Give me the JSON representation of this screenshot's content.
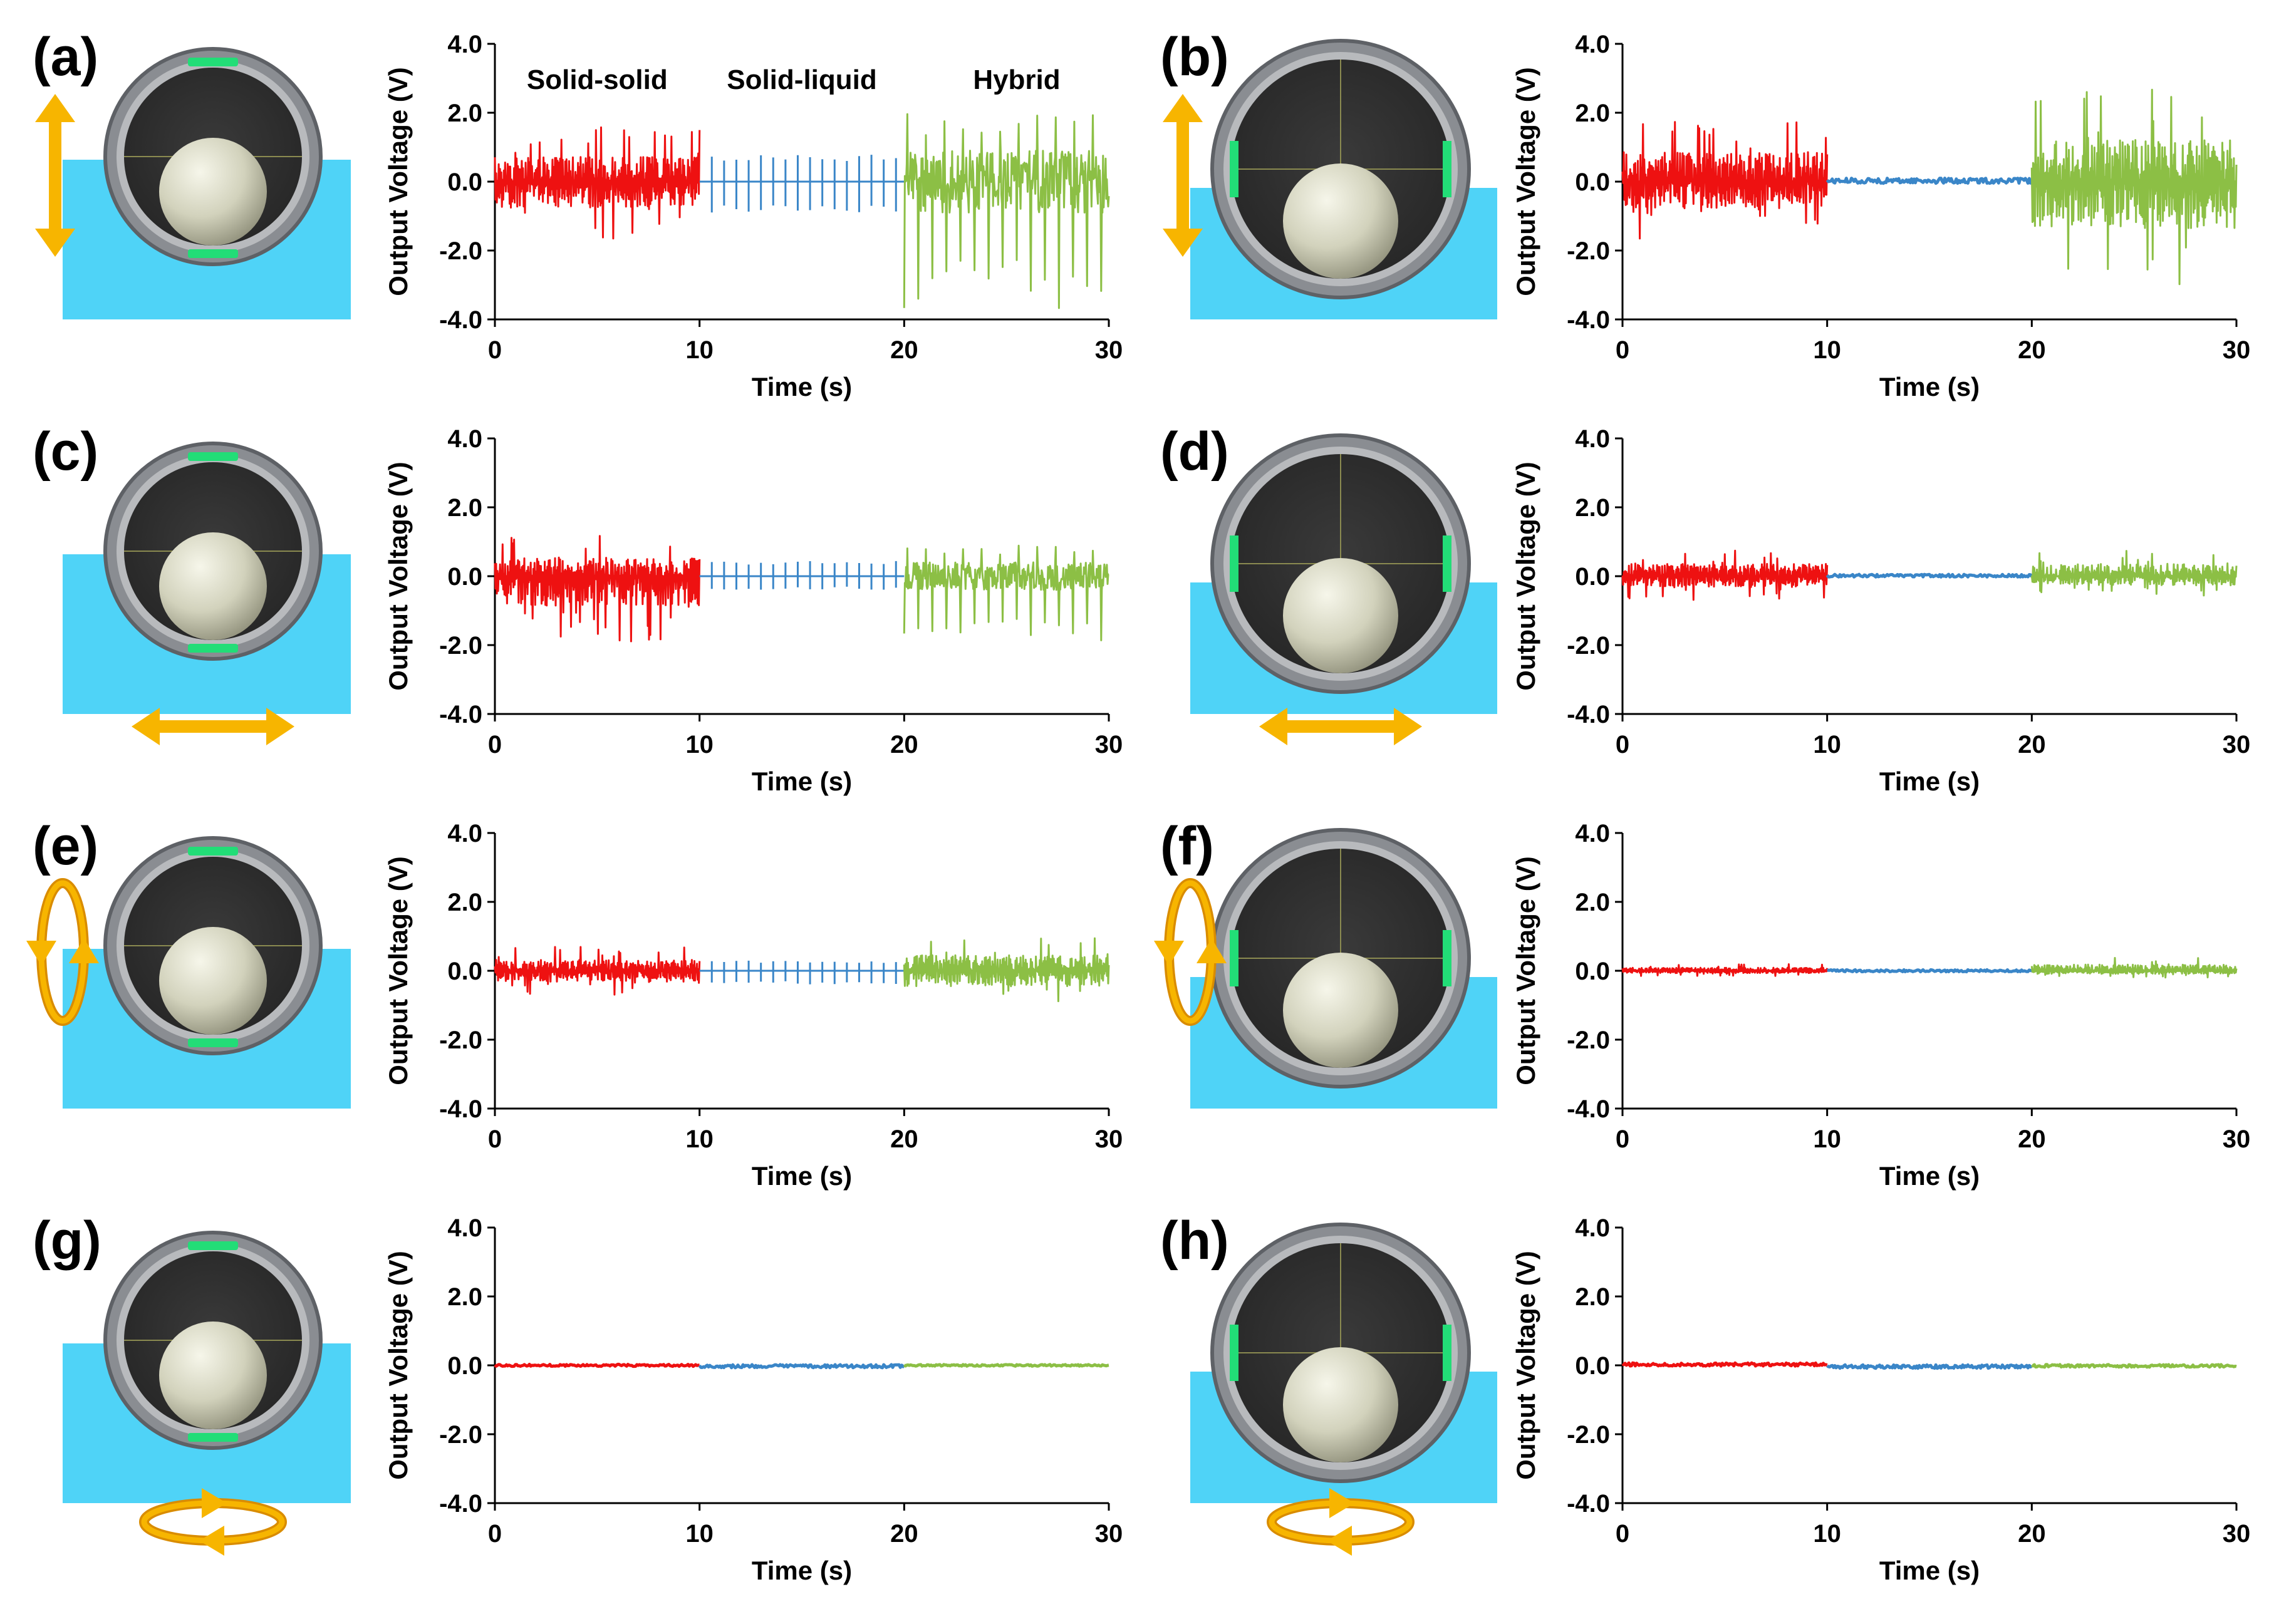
{
  "figure": {
    "colors": {
      "solid_solid": "#ee1111",
      "solid_liquid": "#3a86c8",
      "hybrid": "#8cbf45",
      "water": "#4fd3f7",
      "arrow": "#f7b500",
      "arrow_dark": "#d98c00",
      "electrode": "#22dd77",
      "ball": "#d2d2bc",
      "tube_ring": "#8a8d92",
      "tube_inner": "#262626"
    },
    "regime_labels": [
      "Solid-solid",
      "Solid-liquid",
      "Hybrid"
    ]
  },
  "chart_data": [
    {
      "type": "line",
      "panel": "(a)",
      "electrodes": "top-bottom",
      "motion": "vertical",
      "xlabel": "Time (s)",
      "ylabel": "Output Voltage (V)",
      "xlim": [
        0,
        30
      ],
      "ylim": [
        -4.0,
        4.0
      ],
      "xticks": [
        "0",
        "10",
        "20",
        "30"
      ],
      "yticks": [
        "4.0",
        "2.0",
        "0.0",
        "-2.0",
        "-4.0"
      ],
      "series": [
        {
          "name": "Solid-solid",
          "x_range": [
            0,
            10
          ],
          "peak_max": 1.6,
          "peak_min": -1.7,
          "style": "dense"
        },
        {
          "name": "Solid-liquid",
          "x_range": [
            10,
            20
          ],
          "peak_max": 0.8,
          "peak_min": -0.9,
          "style": "spikes"
        },
        {
          "name": "Hybrid",
          "x_range": [
            20,
            30
          ],
          "peak_max": 2.0,
          "peak_min": -3.7,
          "style": "hybrid"
        }
      ]
    },
    {
      "type": "line",
      "panel": "(b)",
      "electrodes": "left-right",
      "motion": "vertical",
      "xlabel": "Time (s)",
      "ylabel": "Output Voltage (V)",
      "xlim": [
        0,
        30
      ],
      "ylim": [
        -4.0,
        4.0
      ],
      "xticks": [
        "0",
        "10",
        "20",
        "30"
      ],
      "yticks": [
        "4.0",
        "2.0",
        "0.0",
        "-2.0",
        "-4.0"
      ],
      "series": [
        {
          "name": "Solid-solid",
          "x_range": [
            0,
            10
          ],
          "peak_max": 1.9,
          "peak_min": -1.7,
          "style": "dense"
        },
        {
          "name": "Solid-liquid",
          "x_range": [
            10,
            20
          ],
          "peak_max": 0.15,
          "peak_min": -0.1,
          "style": "flat"
        },
        {
          "name": "Hybrid",
          "x_range": [
            20,
            30
          ],
          "peak_max": 2.7,
          "peak_min": -3.0,
          "style": "dense"
        }
      ]
    },
    {
      "type": "line",
      "panel": "(c)",
      "electrodes": "top-bottom",
      "motion": "horizontal",
      "xlabel": "Time (s)",
      "ylabel": "Output Voltage (V)",
      "xlim": [
        0,
        30
      ],
      "ylim": [
        -4.0,
        4.0
      ],
      "xticks": [
        "0",
        "10",
        "20",
        "30"
      ],
      "yticks": [
        "4.0",
        "2.0",
        "0.0",
        "-2.0",
        "-4.0"
      ],
      "series": [
        {
          "name": "Solid-solid",
          "x_range": [
            0,
            10
          ],
          "peak_max": 1.2,
          "peak_min": -1.9,
          "style": "dense"
        },
        {
          "name": "Solid-liquid",
          "x_range": [
            10,
            20
          ],
          "peak_max": 0.45,
          "peak_min": -0.4,
          "style": "spikes"
        },
        {
          "name": "Hybrid",
          "x_range": [
            20,
            30
          ],
          "peak_max": 0.9,
          "peak_min": -1.9,
          "style": "hybrid"
        }
      ]
    },
    {
      "type": "line",
      "panel": "(d)",
      "electrodes": "left-right",
      "motion": "horizontal",
      "xlabel": "Time (s)",
      "ylabel": "Output Voltage (V)",
      "xlim": [
        0,
        30
      ],
      "ylim": [
        -4.0,
        4.0
      ],
      "xticks": [
        "0",
        "10",
        "20",
        "30"
      ],
      "yticks": [
        "4.0",
        "2.0",
        "0.0",
        "-2.0",
        "-4.0"
      ],
      "series": [
        {
          "name": "Solid-solid",
          "x_range": [
            0,
            10
          ],
          "peak_max": 0.8,
          "peak_min": -0.7,
          "style": "dense"
        },
        {
          "name": "Solid-liquid",
          "x_range": [
            10,
            20
          ],
          "peak_max": 0.08,
          "peak_min": -0.05,
          "style": "flat"
        },
        {
          "name": "Hybrid",
          "x_range": [
            20,
            30
          ],
          "peak_max": 0.8,
          "peak_min": -0.6,
          "style": "dense"
        }
      ]
    },
    {
      "type": "line",
      "panel": "(e)",
      "electrodes": "top-bottom",
      "motion": "rotate-vertical",
      "xlabel": "Time (s)",
      "ylabel": "Output Voltage (V)",
      "xlim": [
        0,
        30
      ],
      "ylim": [
        -4.0,
        4.0
      ],
      "xticks": [
        "0",
        "10",
        "20",
        "30"
      ],
      "yticks": [
        "4.0",
        "2.0",
        "0.0",
        "-2.0",
        "-4.0"
      ],
      "series": [
        {
          "name": "Solid-solid",
          "x_range": [
            0,
            10
          ],
          "peak_max": 0.7,
          "peak_min": -0.7,
          "style": "dense"
        },
        {
          "name": "Solid-liquid",
          "x_range": [
            10,
            20
          ],
          "peak_max": 0.3,
          "peak_min": -0.4,
          "style": "spikes"
        },
        {
          "name": "Hybrid",
          "x_range": [
            20,
            30
          ],
          "peak_max": 1.0,
          "peak_min": -1.0,
          "style": "dense"
        }
      ]
    },
    {
      "type": "line",
      "panel": "(f)",
      "electrodes": "left-right",
      "motion": "rotate-vertical",
      "xlabel": "Time (s)",
      "ylabel": "Output Voltage (V)",
      "xlim": [
        0,
        30
      ],
      "ylim": [
        -4.0,
        4.0
      ],
      "xticks": [
        "0",
        "10",
        "20",
        "30"
      ],
      "yticks": [
        "4.0",
        "2.0",
        "0.0",
        "-2.0",
        "-4.0"
      ],
      "series": [
        {
          "name": "Solid-solid",
          "x_range": [
            0,
            10
          ],
          "peak_max": 0.2,
          "peak_min": -0.15,
          "style": "dense"
        },
        {
          "name": "Solid-liquid",
          "x_range": [
            10,
            20
          ],
          "peak_max": 0.05,
          "peak_min": -0.05,
          "style": "flat"
        },
        {
          "name": "Hybrid",
          "x_range": [
            20,
            30
          ],
          "peak_max": 0.4,
          "peak_min": -0.2,
          "style": "dense"
        }
      ]
    },
    {
      "type": "line",
      "panel": "(g)",
      "electrodes": "top-bottom",
      "motion": "rotate-horizontal",
      "xlabel": "Time (s)",
      "ylabel": "Output Voltage (V)",
      "xlim": [
        0,
        30
      ],
      "ylim": [
        -4.0,
        4.0
      ],
      "xticks": [
        "0",
        "10",
        "20",
        "30"
      ],
      "yticks": [
        "4.0",
        "2.0",
        "0.0",
        "-2.0",
        "-4.0"
      ],
      "series": [
        {
          "name": "Solid-solid",
          "x_range": [
            0,
            10
          ],
          "peak_max": 0.05,
          "peak_min": -0.05,
          "style": "flat"
        },
        {
          "name": "Solid-liquid",
          "x_range": [
            10,
            20
          ],
          "peak_max": 0.05,
          "peak_min": -0.1,
          "style": "flat"
        },
        {
          "name": "Hybrid",
          "x_range": [
            20,
            30
          ],
          "peak_max": 0.04,
          "peak_min": -0.04,
          "style": "flat"
        }
      ]
    },
    {
      "type": "line",
      "panel": "(h)",
      "electrodes": "left-right",
      "motion": "rotate-horizontal",
      "xlabel": "Time (s)",
      "ylabel": "Output Voltage (V)",
      "xlim": [
        0,
        30
      ],
      "ylim": [
        -4.0,
        4.0
      ],
      "xticks": [
        "0",
        "10",
        "20",
        "30"
      ],
      "yticks": [
        "4.0",
        "2.0",
        "0.0",
        "-2.0",
        "-4.0"
      ],
      "series": [
        {
          "name": "Solid-solid",
          "x_range": [
            0,
            10
          ],
          "peak_max": 0.1,
          "peak_min": -0.05,
          "style": "flat"
        },
        {
          "name": "Solid-liquid",
          "x_range": [
            10,
            20
          ],
          "peak_max": 0.05,
          "peak_min": -0.12,
          "style": "flat"
        },
        {
          "name": "Hybrid",
          "x_range": [
            20,
            30
          ],
          "peak_max": 0.05,
          "peak_min": -0.08,
          "style": "flat"
        }
      ]
    }
  ]
}
